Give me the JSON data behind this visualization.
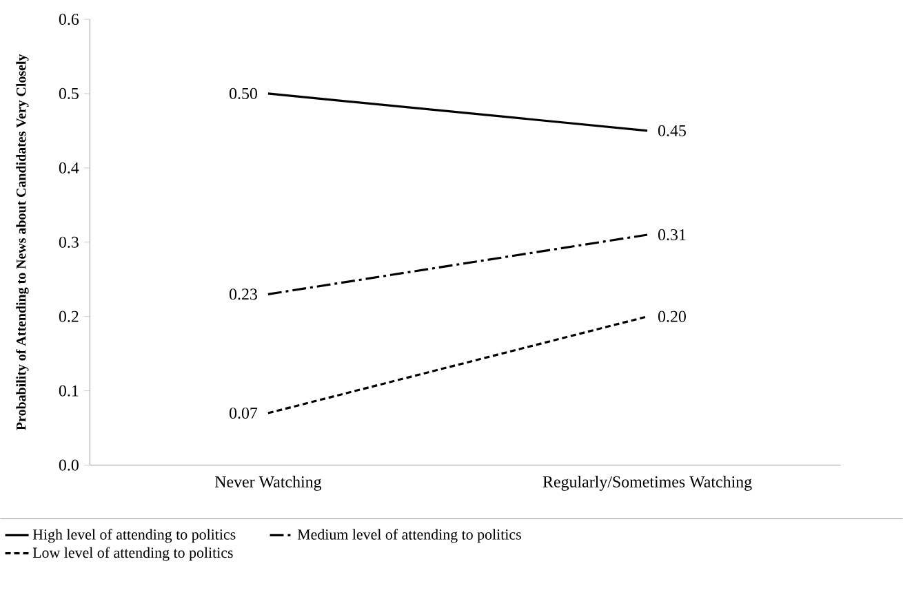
{
  "chart_data": {
    "type": "line",
    "ylabel": "Probability of Attending to News about Candidates Very Closely",
    "categories": [
      "Never Watching",
      "Regularly/Sometimes Watching"
    ],
    "series": [
      {
        "name": "High level of attending to politics",
        "color": "#000000",
        "line_style": "solid",
        "values": [
          0.5,
          0.45
        ],
        "value_labels": [
          "0.50",
          "0.45"
        ]
      },
      {
        "name": "Medium level of attending to politics",
        "color": "#000000",
        "line_style": "dashdot",
        "values": [
          0.23,
          0.31
        ],
        "value_labels": [
          "0.23",
          "0.31"
        ]
      },
      {
        "name": "Low level of attending to politics",
        "color": "#000000",
        "line_style": "dashed",
        "values": [
          0.07,
          0.2
        ],
        "value_labels": [
          "0.07",
          "0.20"
        ]
      }
    ],
    "ylim": [
      0,
      0.6
    ],
    "yticks": [
      {
        "value": 0,
        "label": "0.0"
      },
      {
        "value": 0.1,
        "label": "0.1"
      },
      {
        "value": 0.2,
        "label": "0.2"
      },
      {
        "value": 0.3,
        "label": "0.3"
      },
      {
        "value": 0.4,
        "label": "0.4"
      },
      {
        "value": 0.5,
        "label": "0.5"
      },
      {
        "value": 0.6,
        "label": "0.6"
      }
    ],
    "grid": false,
    "legend": "bottom",
    "marker": "none"
  }
}
